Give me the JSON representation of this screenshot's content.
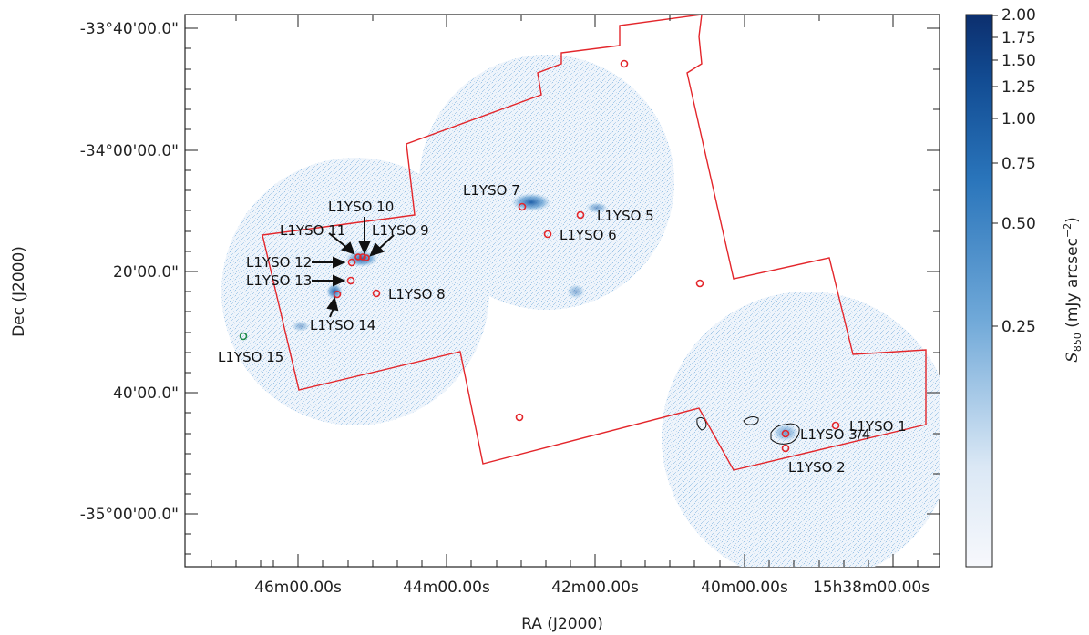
{
  "axes": {
    "xlabel": "RA (J2000)",
    "ylabel": "Dec (J2000)",
    "xticks": [
      "46m00.00s",
      "44m00.00s",
      "42m00.00s",
      "40m00.00s",
      "15h38m00.00s"
    ],
    "yticks": [
      "-33°40'00.0\"",
      "-34°00'00.0\"",
      "20'00.0\"",
      "40'00.0\"",
      "-35°00'00.0\""
    ]
  },
  "colorbar": {
    "label_main": "S",
    "label_sub": "850",
    "label_units": " (mJy arcsec",
    "label_exp": "−2",
    "label_close": ")",
    "ticks": [
      "2.00",
      "1.75",
      "1.50",
      "1.25",
      "1.00",
      "0.75",
      "0.50",
      "0.25"
    ],
    "colors": {
      "high": "#0c2f6e",
      "mid": "#2f7fc0",
      "low": "#e8f0f9",
      "zero": "#f7f8fc"
    }
  },
  "colors": {
    "footprint": "#e3262b",
    "yso_marker": "#e3262b",
    "yso15_marker": "#1e8a4a",
    "map": "#7fb3de",
    "contour": "#111111"
  },
  "sources": [
    {
      "id": "yso1",
      "label": "L1YSO 1"
    },
    {
      "id": "yso2",
      "label": "L1YSO 2"
    },
    {
      "id": "yso34",
      "label": "L1YSO 3/4"
    },
    {
      "id": "yso5",
      "label": "L1YSO 5"
    },
    {
      "id": "yso6",
      "label": "L1YSO 6"
    },
    {
      "id": "yso7",
      "label": "L1YSO 7"
    },
    {
      "id": "yso8",
      "label": "L1YSO 8"
    },
    {
      "id": "yso9",
      "label": "L1YSO 9"
    },
    {
      "id": "yso10",
      "label": "L1YSO 10"
    },
    {
      "id": "yso11",
      "label": "L1YSO 11"
    },
    {
      "id": "yso12",
      "label": "L1YSO 12"
    },
    {
      "id": "yso13",
      "label": "L1YSO 13"
    },
    {
      "id": "yso14",
      "label": "L1YSO 14"
    },
    {
      "id": "yso15",
      "label": "L1YSO 15"
    }
  ]
}
